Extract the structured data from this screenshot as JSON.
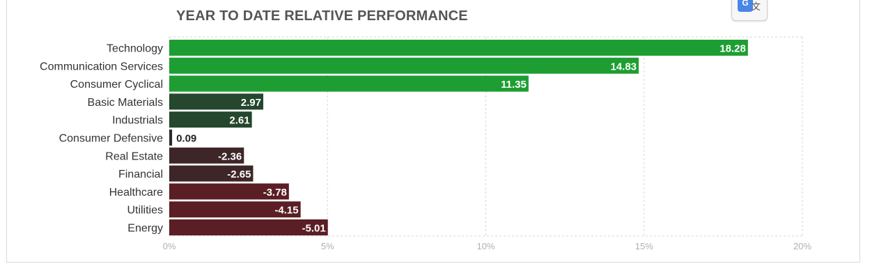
{
  "chart_data": {
    "type": "bar",
    "orientation": "horizontal",
    "title": "YEAR TO DATE RELATIVE PERFORMANCE",
    "categories": [
      "Technology",
      "Communication Services",
      "Consumer Cyclical",
      "Basic Materials",
      "Industrials",
      "Consumer Defensive",
      "Real Estate",
      "Financial",
      "Healthcare",
      "Utilities",
      "Energy"
    ],
    "values": [
      18.28,
      14.83,
      11.35,
      2.97,
      2.61,
      0.09,
      -2.36,
      -2.65,
      -3.78,
      -4.15,
      -5.01
    ],
    "value_labels": [
      "18.28",
      "14.83",
      "11.35",
      "2.97",
      "2.61",
      "0.09",
      "-2.36",
      "-2.65",
      "-3.78",
      "-4.15",
      "-5.01"
    ],
    "xlim": [
      0,
      20
    ],
    "xticks": [
      0,
      5,
      10,
      15,
      20
    ],
    "xtick_labels": [
      "0%",
      "5%",
      "10%",
      "15%",
      "20%"
    ],
    "xlabel": "",
    "ylabel": "",
    "grid": true,
    "negative_values_drawn_as_magnitude": true,
    "colors": {
      "strong_positive": "#1e9e32",
      "mid_positive": "#1f7a30",
      "weak_positive": "#24472e",
      "neutral": "#2b2b2b",
      "weak_negative": "#3e2628",
      "strong_negative": "#5a1e24",
      "grid": "#d5d5d5",
      "axis_text": "#b0b0b0"
    }
  },
  "toolbar": {
    "translate_icon": "google-translate-icon",
    "translate_badge": "G",
    "translate_glyph": "文"
  }
}
